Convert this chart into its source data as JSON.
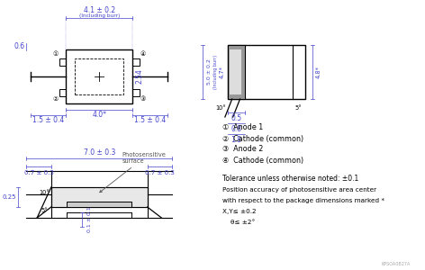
{
  "background": "#ffffff",
  "text_color": "#000000",
  "dim_color": "#4444cc",
  "annotation_color": "#555555",
  "legend_items": [
    "①  Anode 1",
    "②  Cathode (common)",
    "③  Anode 2",
    "④  Cathode (common)"
  ],
  "tolerance_text": "Tolerance unless otherwise noted: ±0.1",
  "position_text1": "Position accuracy of photosensitive area center",
  "position_text2": "with respect to the package dimensions marked *",
  "position_text3": "X,Y≤ ±0.2",
  "position_text4": "    θ≤ ±2°",
  "watermark": "KPSOA0B27A"
}
